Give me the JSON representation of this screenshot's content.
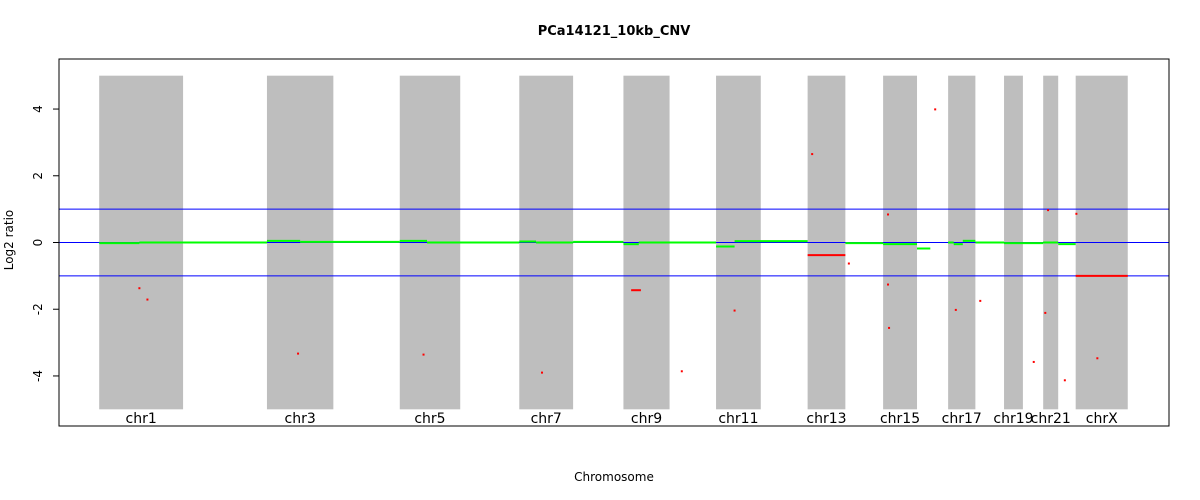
{
  "chart_data": {
    "type": "scatter",
    "title": "PCa14121_10kb_CNV",
    "xlabel": "Chromosome",
    "ylabel": "Log2 ratio",
    "ylim": [
      -5.5,
      5.5
    ],
    "yticks": [
      -4,
      -2,
      0,
      2,
      4
    ],
    "grid": false,
    "chromosome_labels": [
      "chr1",
      "chr3",
      "chr5",
      "chr7",
      "chr9",
      "chr11",
      "chr13",
      "chr15",
      "chr17",
      "chr19",
      "chr21",
      "chrX"
    ],
    "shaded_bands": [
      {
        "chromosome": "chr1",
        "start": 0.0,
        "end": 24.0
      },
      {
        "chromosome": "chr3",
        "start": 48.0,
        "end": 67.0
      },
      {
        "chromosome": "chr5",
        "start": 86.0,
        "end": 103.3
      },
      {
        "chromosome": "chr7",
        "start": 120.2,
        "end": 135.6
      },
      {
        "chromosome": "chr9",
        "start": 150.0,
        "end": 163.2
      },
      {
        "chromosome": "chr11",
        "start": 176.5,
        "end": 189.3
      },
      {
        "chromosome": "chr13",
        "start": 202.7,
        "end": 213.5
      },
      {
        "chromosome": "chr15",
        "start": 224.3,
        "end": 234.0
      },
      {
        "chromosome": "chr17",
        "start": 242.9,
        "end": 250.7
      },
      {
        "chromosome": "chr19",
        "start": 258.9,
        "end": 264.3
      },
      {
        "chromosome": "chr21",
        "start": 270.1,
        "end": 274.4
      },
      {
        "chromosome": "chrX",
        "start": 279.4,
        "end": 294.3
      }
    ],
    "x_range": [
      -11.5,
      306.1
    ],
    "band_y_range": [
      -5,
      5
    ],
    "reference_lines": [
      {
        "y": 1,
        "color": "#0000ff"
      },
      {
        "y": 0,
        "color": "#0000ff"
      },
      {
        "y": -1,
        "color": "#0000ff"
      }
    ],
    "colors": {
      "band": "#bebebe",
      "reference_line": "#0000ff",
      "segment_normal": "#00ff00",
      "segment_altered": "#ff0000",
      "point": "#ff0000"
    },
    "series": [
      {
        "color": "#00ff00",
        "segments": [
          {
            "x0": 0.0,
            "x1": 11.5,
            "y": -0.02
          },
          {
            "x0": 11.5,
            "x1": 24.0,
            "y": 0.0
          },
          {
            "x0": 24.0,
            "x1": 48.0,
            "y": 0.0
          },
          {
            "x0": 48.0,
            "x1": 57.5,
            "y": 0.05
          },
          {
            "x0": 57.5,
            "x1": 86.0,
            "y": 0.02
          },
          {
            "x0": 86.0,
            "x1": 93.8,
            "y": 0.05
          },
          {
            "x0": 93.8,
            "x1": 120.2,
            "y": 0.0
          },
          {
            "x0": 120.2,
            "x1": 125.0,
            "y": 0.03
          },
          {
            "x0": 125.0,
            "x1": 135.6,
            "y": 0.0
          },
          {
            "x0": 135.6,
            "x1": 150.0,
            "y": 0.02
          },
          {
            "x0": 150.0,
            "x1": 154.4,
            "y": -0.05
          },
          {
            "x0": 154.4,
            "x1": 176.5,
            "y": 0.0
          },
          {
            "x0": 176.5,
            "x1": 181.8,
            "y": -0.12
          },
          {
            "x0": 181.8,
            "x1": 202.7,
            "y": 0.04
          },
          {
            "x0": 213.5,
            "x1": 224.3,
            "y": -0.02
          },
          {
            "x0": 224.3,
            "x1": 234.0,
            "y": -0.05
          },
          {
            "x0": 234.0,
            "x1": 237.8,
            "y": -0.18
          },
          {
            "x0": 242.9,
            "x1": 244.5,
            "y": 0.0
          },
          {
            "x0": 244.5,
            "x1": 247.1,
            "y": -0.05
          },
          {
            "x0": 247.1,
            "x1": 250.7,
            "y": 0.05
          },
          {
            "x0": 250.7,
            "x1": 258.9,
            "y": 0.0
          },
          {
            "x0": 258.9,
            "x1": 270.1,
            "y": -0.02
          },
          {
            "x0": 270.1,
            "x1": 274.4,
            "y": 0.0
          },
          {
            "x0": 274.4,
            "x1": 279.4,
            "y": -0.05
          }
        ]
      },
      {
        "color": "#ff0000",
        "segments": [
          {
            "x0": 152.2,
            "x1": 155.0,
            "y": -1.43
          },
          {
            "x0": 202.7,
            "x1": 213.5,
            "y": -0.38
          },
          {
            "x0": 279.4,
            "x1": 294.3,
            "y": -1.0
          }
        ]
      },
      {
        "color": "#ff0000",
        "points": [
          {
            "x": 11.5,
            "y": -1.37
          },
          {
            "x": 13.8,
            "y": -1.71
          },
          {
            "x": 56.9,
            "y": -3.33
          },
          {
            "x": 92.8,
            "y": -3.36
          },
          {
            "x": 126.7,
            "y": -3.9
          },
          {
            "x": 166.7,
            "y": -3.86
          },
          {
            "x": 181.8,
            "y": -2.04
          },
          {
            "x": 204.0,
            "y": 2.65
          },
          {
            "x": 214.5,
            "y": -0.63
          },
          {
            "x": 225.7,
            "y": 0.84
          },
          {
            "x": 225.7,
            "y": -1.26
          },
          {
            "x": 226.0,
            "y": -2.56
          },
          {
            "x": 239.2,
            "y": 3.99
          },
          {
            "x": 245.1,
            "y": -2.02
          },
          {
            "x": 252.1,
            "y": -1.75
          },
          {
            "x": 267.4,
            "y": -3.58
          },
          {
            "x": 270.7,
            "y": -2.11
          },
          {
            "x": 271.5,
            "y": 0.97
          },
          {
            "x": 276.3,
            "y": -4.13
          },
          {
            "x": 279.6,
            "y": 0.86
          },
          {
            "x": 285.6,
            "y": -3.47
          }
        ]
      }
    ]
  }
}
